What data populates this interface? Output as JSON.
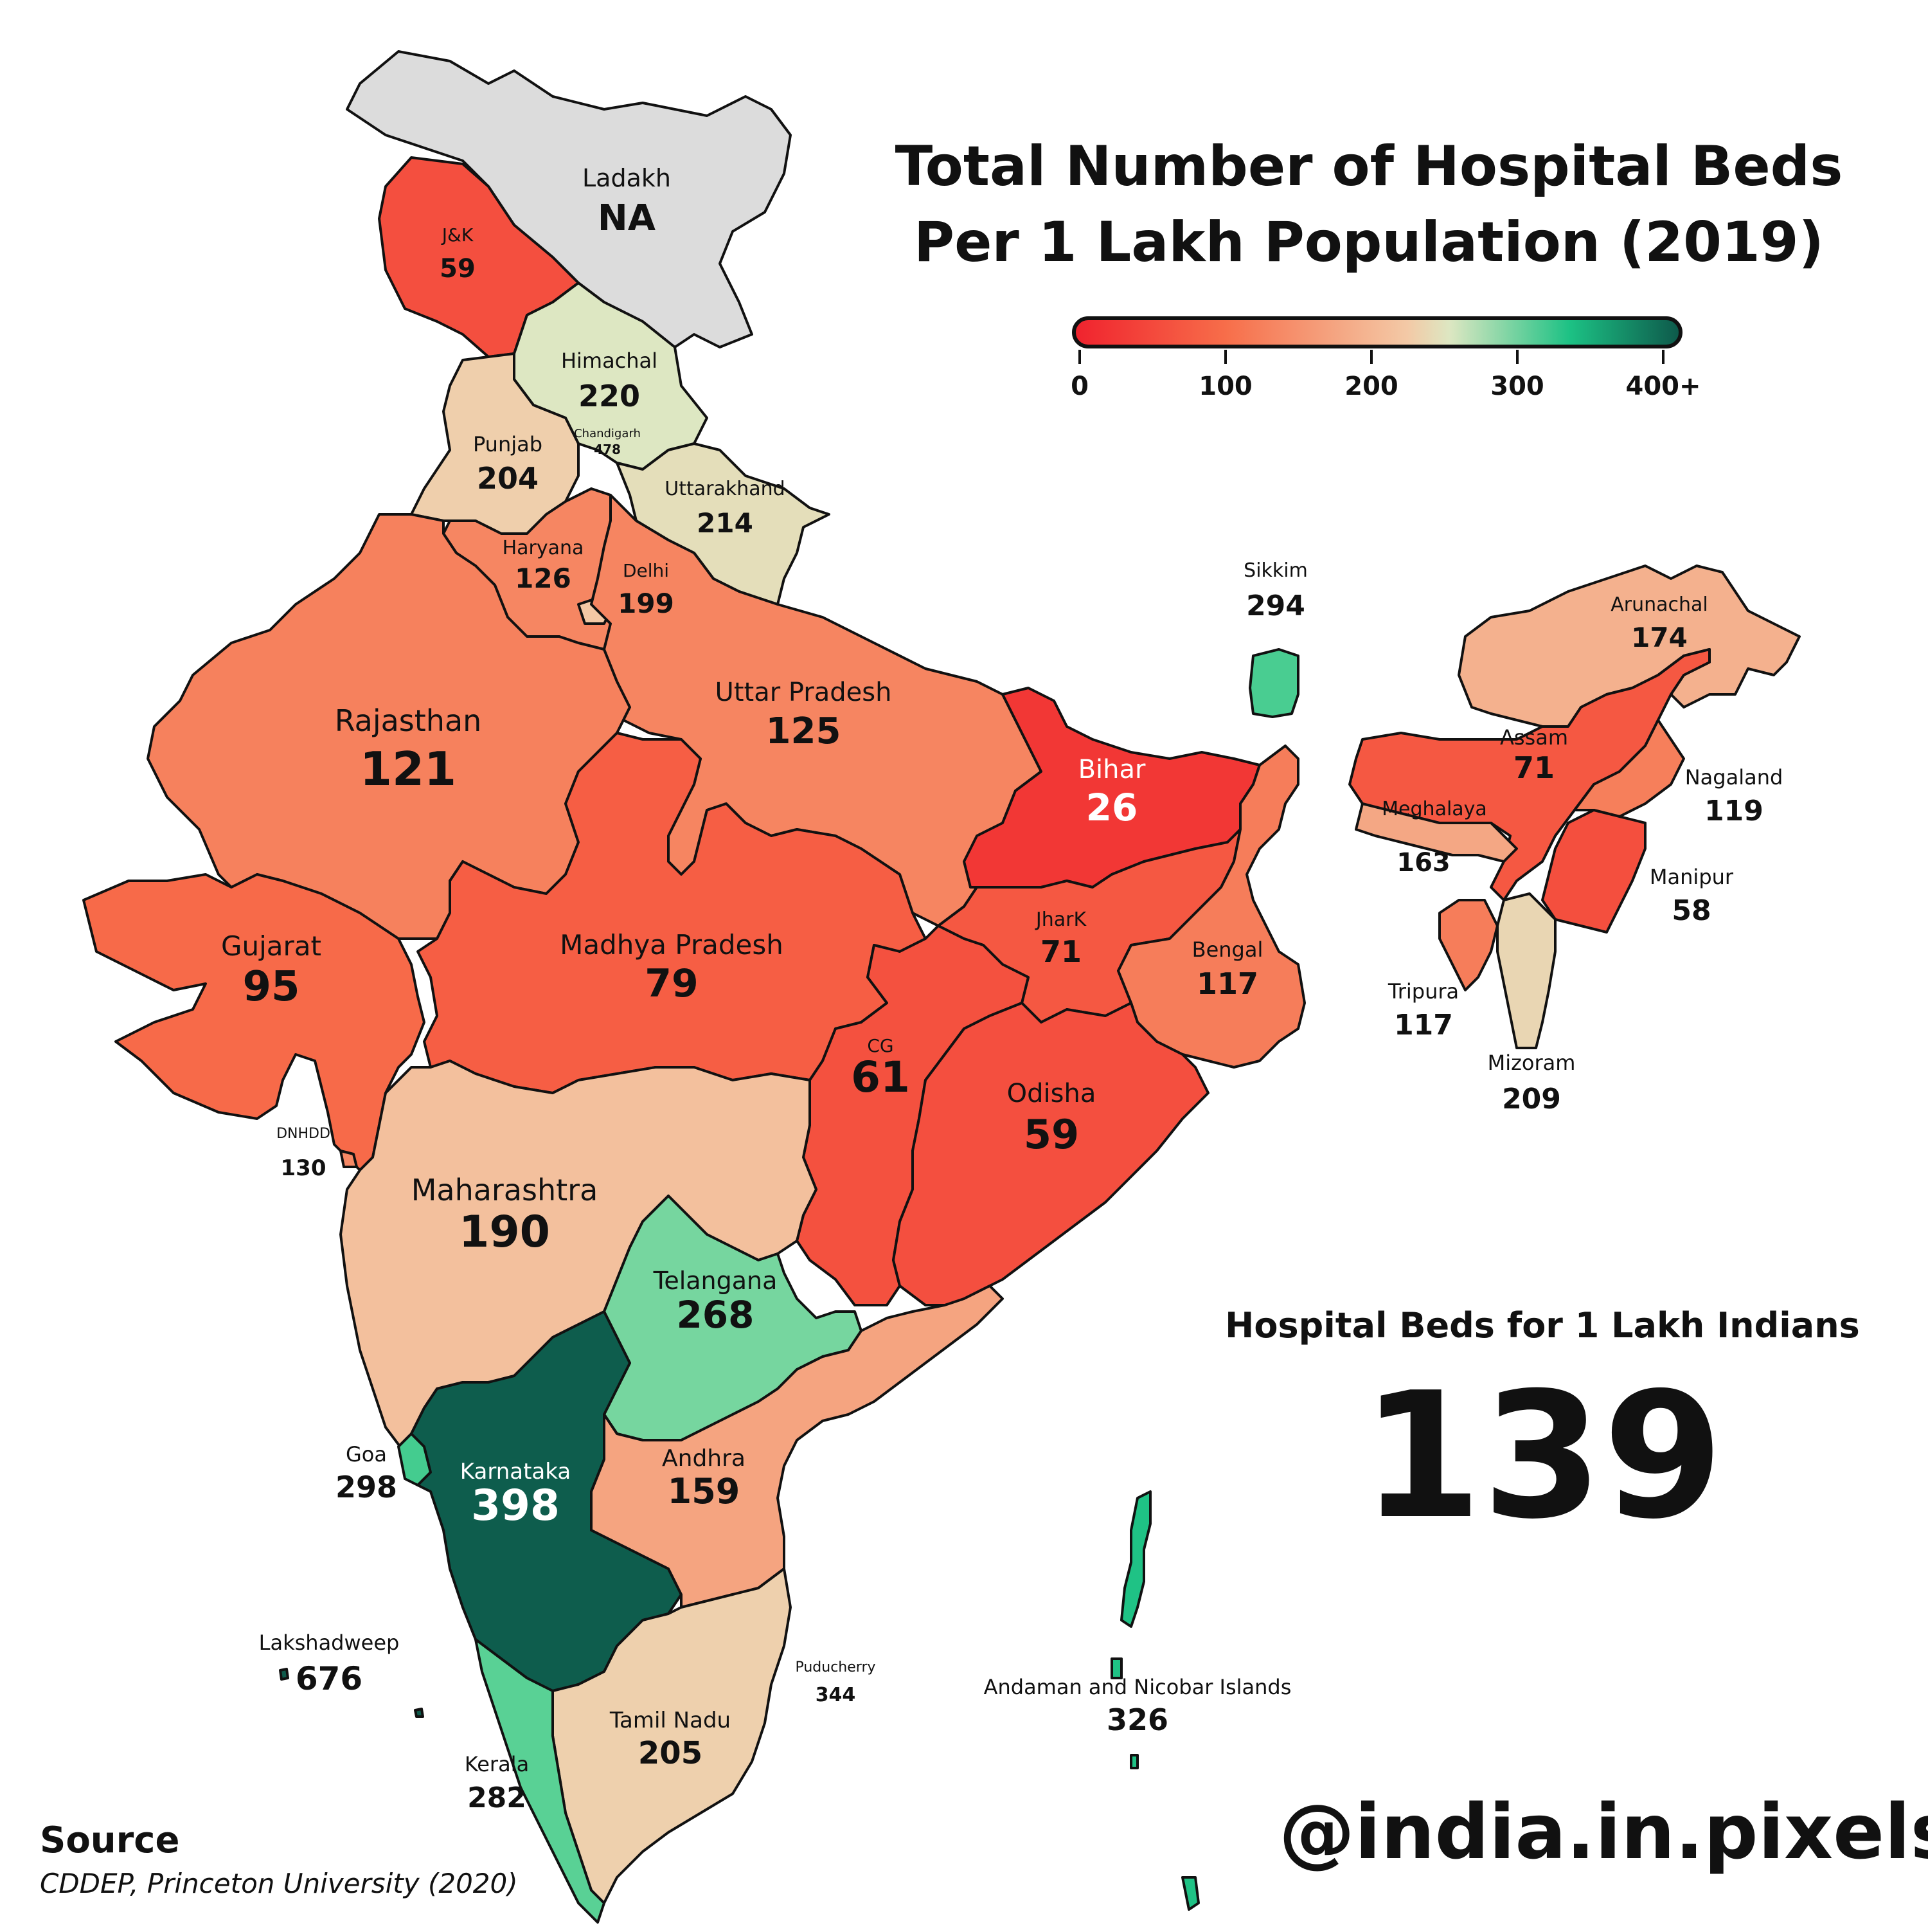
{
  "title": {
    "line1": "Total Number of Hospital Beds",
    "line2": "Per 1 Lakh Population (2019)"
  },
  "legend": {
    "ticks": [
      "0",
      "100",
      "200",
      "300",
      "400+"
    ],
    "min": 0,
    "max": 400
  },
  "summary": {
    "label": "Hospital Beds for 1 Lakh Indians",
    "value": "139"
  },
  "source": {
    "title": "Source",
    "text": "CDDEP, Princeton University (2020)"
  },
  "handle": "@india.in.pixels",
  "colors": {
    "low": "#f0232e",
    "mid": "#f3c9a6",
    "high": "#0e5a4b",
    "na": "#dcdcdc",
    "border": "#111111"
  },
  "regions": [
    {
      "id": "ladakh",
      "name": "Ladakh",
      "value": "NA"
    },
    {
      "id": "jk",
      "name": "J&K",
      "value": "59"
    },
    {
      "id": "himachal",
      "name": "Himachal",
      "value": "220"
    },
    {
      "id": "chandigarh",
      "name": "Chandigarh",
      "value": "478"
    },
    {
      "id": "punjab",
      "name": "Punjab",
      "value": "204"
    },
    {
      "id": "uttarakhand",
      "name": "Uttarakhand",
      "value": "214"
    },
    {
      "id": "haryana",
      "name": "Haryana",
      "value": "126"
    },
    {
      "id": "delhi",
      "name": "Delhi",
      "value": "199"
    },
    {
      "id": "rajasthan",
      "name": "Rajasthan",
      "value": "121"
    },
    {
      "id": "up",
      "name": "Uttar Pradesh",
      "value": "125"
    },
    {
      "id": "bihar",
      "name": "Bihar",
      "value": "26"
    },
    {
      "id": "sikkim",
      "name": "Sikkim",
      "value": "294"
    },
    {
      "id": "arunachal",
      "name": "Arunachal",
      "value": "174"
    },
    {
      "id": "assam",
      "name": "Assam",
      "value": "71"
    },
    {
      "id": "nagaland",
      "name": "Nagaland",
      "value": "119"
    },
    {
      "id": "meghalaya",
      "name": "Meghalaya",
      "value": "163"
    },
    {
      "id": "manipur",
      "name": "Manipur",
      "value": "58"
    },
    {
      "id": "tripura",
      "name": "Tripura",
      "value": "117"
    },
    {
      "id": "mizoram",
      "name": "Mizoram",
      "value": "209"
    },
    {
      "id": "gujarat",
      "name": "Gujarat",
      "value": "95"
    },
    {
      "id": "mp",
      "name": "Madhya Pradesh",
      "value": "79"
    },
    {
      "id": "jharkhand",
      "name": "JharK",
      "value": "71"
    },
    {
      "id": "bengal",
      "name": "Bengal",
      "value": "117"
    },
    {
      "id": "cg",
      "name": "CG",
      "value": "61"
    },
    {
      "id": "odisha",
      "name": "Odisha",
      "value": "59"
    },
    {
      "id": "dnhdd",
      "name": "DNHDD",
      "value": "130"
    },
    {
      "id": "maharashtra",
      "name": "Maharashtra",
      "value": "190"
    },
    {
      "id": "telangana",
      "name": "Telangana",
      "value": "268"
    },
    {
      "id": "goa",
      "name": "Goa",
      "value": "298"
    },
    {
      "id": "karnataka",
      "name": "Karnataka",
      "value": "398"
    },
    {
      "id": "andhra",
      "name": "Andhra",
      "value": "159"
    },
    {
      "id": "lakshadweep",
      "name": "Lakshadweep",
      "value": "676"
    },
    {
      "id": "puducherry",
      "name": "Puducherry",
      "value": "344"
    },
    {
      "id": "andaman",
      "name": "Andaman and Nicobar Islands",
      "value": "326"
    },
    {
      "id": "tn",
      "name": "Tamil Nadu",
      "value": "205"
    },
    {
      "id": "kerala",
      "name": "Kerala",
      "value": "282"
    }
  ]
}
